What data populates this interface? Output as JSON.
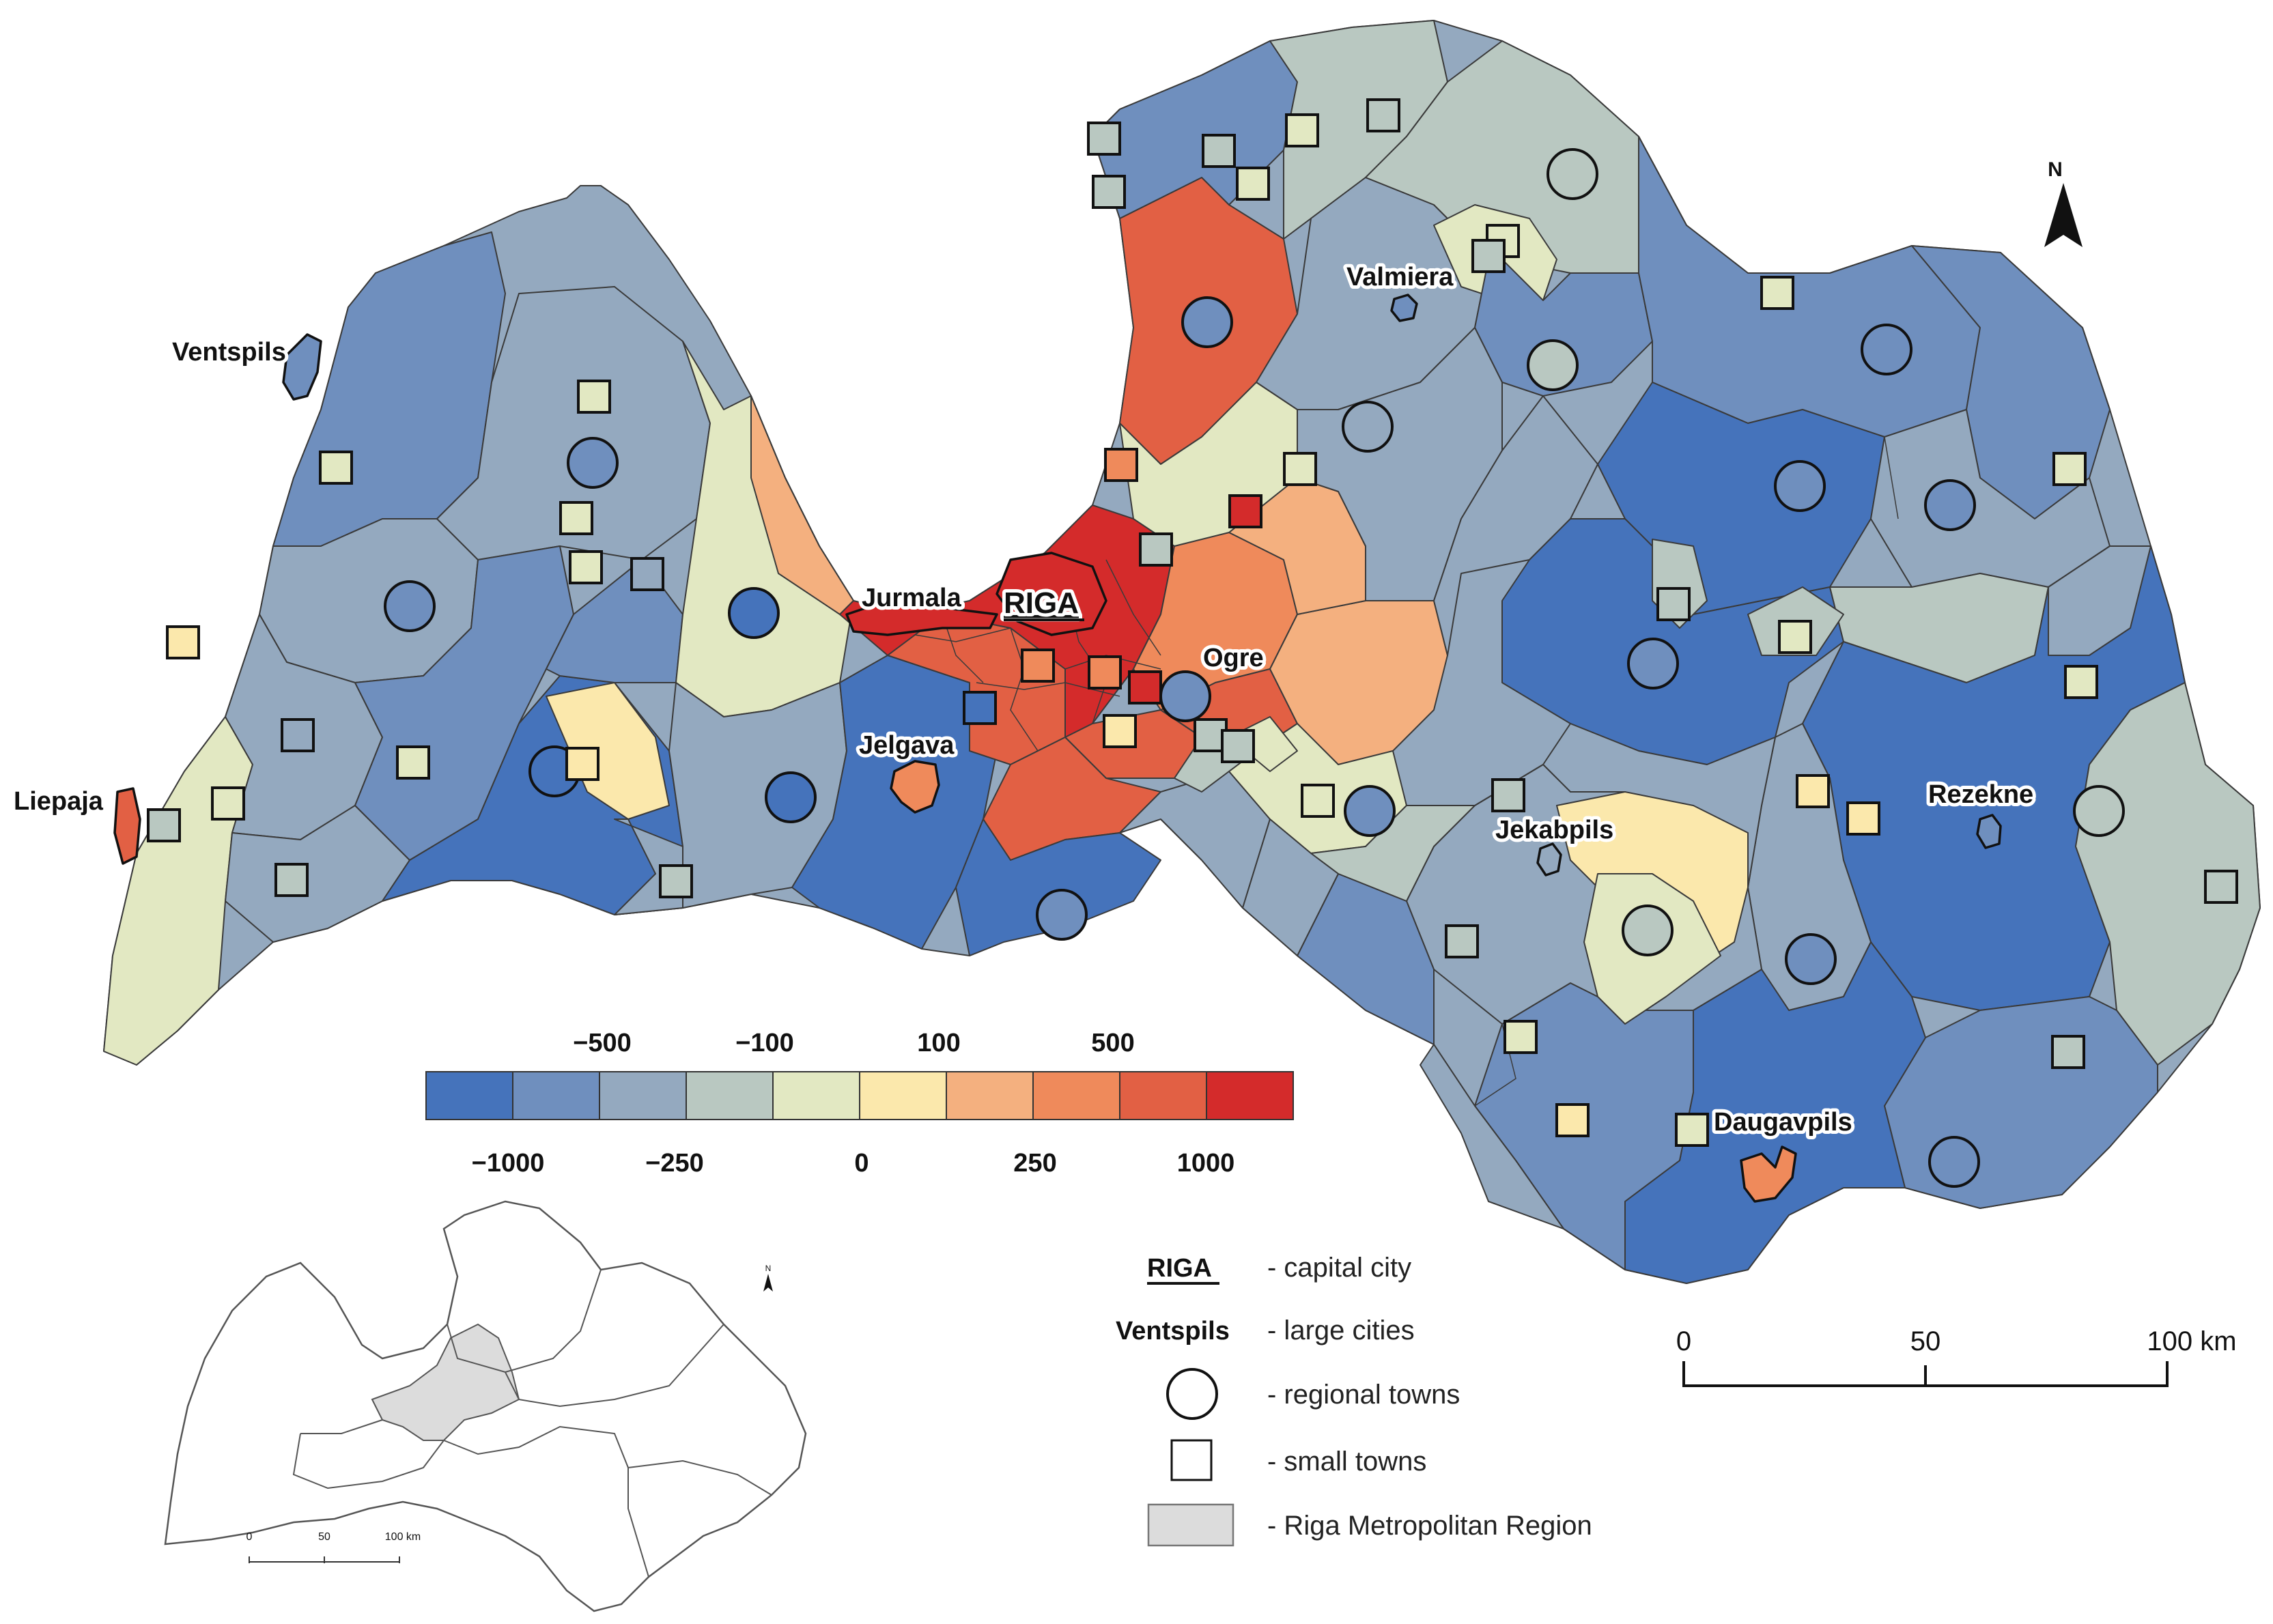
{
  "labels": {
    "riga": "RIGA",
    "jurmala": "Jurmala",
    "ventspils": "Ventspils",
    "liepaja": "Liepaja",
    "jelgava": "Jelgava",
    "ogre": "Ogre",
    "valmiera": "Valmiera",
    "jekabpils": "Jekabpils",
    "rezekne": "Rezekne",
    "daugavpils": "Daugavpils"
  },
  "color_scale": {
    "classes": [
      "#4573bb",
      "#6f8fbe",
      "#94a9bf",
      "#b9c8c1",
      "#e2e8c2",
      "#fbe8ac",
      "#f4b07f",
      "#ef8a5b",
      "#e26044",
      "#d42b2b"
    ],
    "labels_top": [
      "−500",
      "−100",
      "100",
      "500"
    ],
    "labels_bottom": [
      "−1000",
      "−250",
      "0",
      "250",
      "1000"
    ]
  },
  "legend": {
    "capital_sample": "RIGA",
    "capital_desc": "- capital city",
    "large_sample": "Ventspils",
    "large_desc": "- large cities",
    "regional_desc": "- regional towns",
    "small_desc": "- small towns",
    "metro_desc": "- Riga Metropolitan Region"
  },
  "scale_bar": {
    "ticks": [
      "0",
      "50",
      "100 km"
    ]
  },
  "inset": {
    "scale_ticks": [
      "0",
      "50",
      "100 km"
    ],
    "north": "N"
  },
  "north_arrow": {
    "label": "N"
  }
}
